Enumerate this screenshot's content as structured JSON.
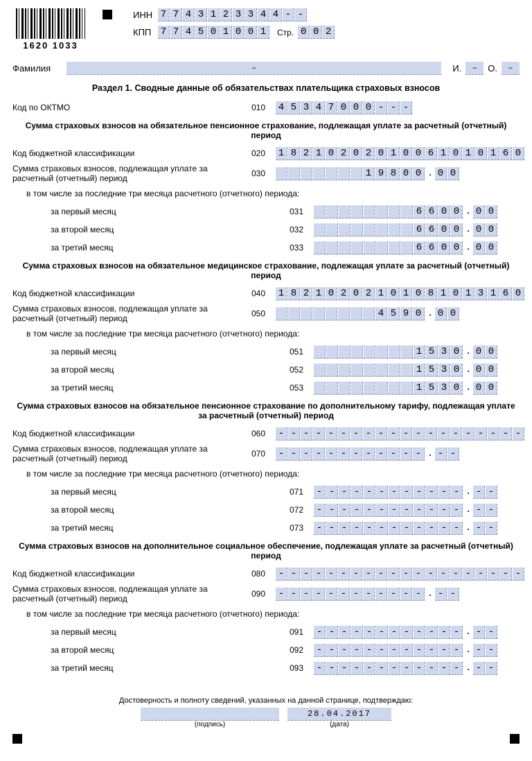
{
  "barcode_number": "1620 1033",
  "header": {
    "inn_label": "ИНН",
    "kpp_label": "КПП",
    "str_label": "Стр.",
    "inn": "7743123344--",
    "kpp": "774501001",
    "page": "002"
  },
  "name": {
    "surname_label": "Фамилия",
    "surname": "–",
    "i_label": "И.",
    "i": "–",
    "o_label": "О.",
    "o": "–"
  },
  "section_title": "Раздел 1. Сводные данные об обязательствах плательщика страховых взносов",
  "oktmo": {
    "label": "Код по ОКТМО",
    "code": "010",
    "value": "45347000---"
  },
  "blocks": [
    {
      "title": "Сумма страховых взносов на обязательное пенсионное страхование, подлежащая уплате за расчетный (отчетный) период",
      "kbk": {
        "label": "Код бюджетной классификации",
        "code": "020",
        "value": "18210202010061010160"
      },
      "total": {
        "label": "Сумма страховых взносов, подлежащая уплате за расчетный (отчетный) период",
        "code": "030",
        "int": "       19800",
        "dec": "00"
      },
      "subnote": "в том числе за последние три месяца расчетного (отчетного) периода:",
      "m1": {
        "label": "за первый месяц",
        "code": "031",
        "int": "        6600",
        "dec": "00"
      },
      "m2": {
        "label": "за второй месяц",
        "code": "032",
        "int": "        6600",
        "dec": "00"
      },
      "m3": {
        "label": "за третий месяц",
        "code": "033",
        "int": "        6600",
        "dec": "00"
      }
    },
    {
      "title": "Сумма страховых взносов на обязательное медицинское страхование, подлежащая уплате за расчетный (отчетный) период",
      "kbk": {
        "label": "Код бюджетной классификации",
        "code": "040",
        "value": "18210202101081013160"
      },
      "total": {
        "label": "Сумма страховых взносов, подлежащая уплате за расчетный (отчетный) период",
        "code": "050",
        "int": "        4590",
        "dec": "00"
      },
      "subnote": "в том числе за последние три месяца расчетного (отчетного) периода:",
      "m1": {
        "label": "за первый месяц",
        "code": "051",
        "int": "        1530",
        "dec": "00"
      },
      "m2": {
        "label": "за второй месяц",
        "code": "052",
        "int": "        1530",
        "dec": "00"
      },
      "m3": {
        "label": "за третий месяц",
        "code": "053",
        "int": "        1530",
        "dec": "00"
      }
    },
    {
      "title": "Сумма страховых взносов на обязательное пенсионное страхование по дополнительному тарифу, подлежащая уплате за расчетный (отчетный) период",
      "kbk": {
        "label": "Код бюджетной классификации",
        "code": "060",
        "value": "--------------------"
      },
      "total": {
        "label": "Сумма страховых взносов, подлежащая уплате за расчетный (отчетный) период",
        "code": "070",
        "int": "------------",
        "dec": "--"
      },
      "subnote": "в том числе за последние три месяца расчетного (отчетного) периода:",
      "m1": {
        "label": "за первый месяц",
        "code": "071",
        "int": "------------",
        "dec": "--"
      },
      "m2": {
        "label": "за второй месяц",
        "code": "072",
        "int": "------------",
        "dec": "--"
      },
      "m3": {
        "label": "за третий месяц",
        "code": "073",
        "int": "------------",
        "dec": "--"
      }
    },
    {
      "title": "Сумма страховых взносов на дополнительное социальное обеспечение, подлежащая уплате за расчетный (отчетный) период",
      "kbk": {
        "label": "Код бюджетной классификации",
        "code": "080",
        "value": "--------------------"
      },
      "total": {
        "label": "Сумма страховых взносов, подлежащая уплате за расчетный (отчетный) период",
        "code": "090",
        "int": "------------",
        "dec": "--"
      },
      "subnote": "в том числе за последние три месяца расчетного (отчетного) периода:",
      "m1": {
        "label": "за первый месяц",
        "code": "091",
        "int": "------------",
        "dec": "--"
      },
      "m2": {
        "label": "за второй месяц",
        "code": "092",
        "int": "------------",
        "dec": "--"
      },
      "m3": {
        "label": "за третий месяц",
        "code": "093",
        "int": "------------",
        "dec": "--"
      }
    }
  ],
  "footer": {
    "attest": "Достоверность и полноту сведений, указанных на данной странице, подтверждаю:",
    "sig_note": "(подпись)",
    "date": "28.04.2017",
    "date_note": "(дата)"
  },
  "style": {
    "cell_bg": "#cfd7ec",
    "cell_border": "#8a93b8",
    "text_color": "#000000",
    "font": "Arial"
  }
}
